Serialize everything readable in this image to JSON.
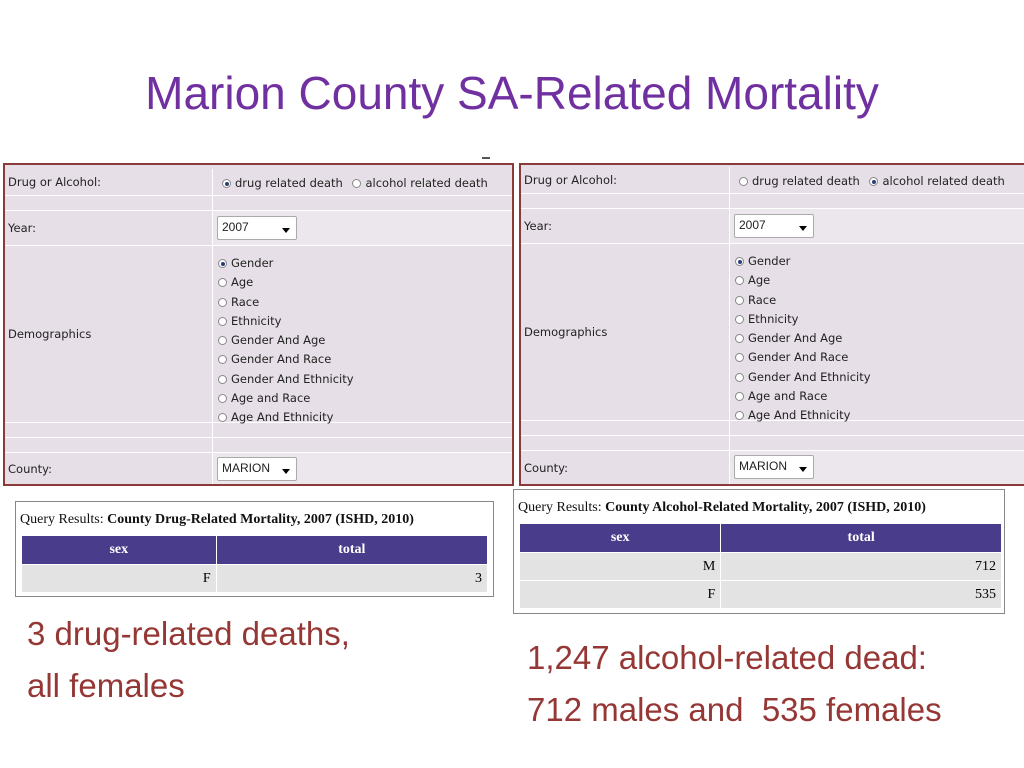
{
  "slide": {
    "title": "Marion County SA-Related Mortality"
  },
  "form_left": {
    "drug_alcohol_label": "Drug or Alcohol:",
    "drug_option": "drug related death",
    "alcohol_option": "alcohol related death",
    "selected_type": "drug",
    "year_label": "Year:",
    "year_value": "2007",
    "demographics_label": "Demographics",
    "demographics": [
      "Gender",
      "Age",
      "Race",
      "Ethnicity",
      "Gender And Age",
      "Gender And Race",
      "Gender And Ethnicity",
      "Age and Race",
      "Age And Ethnicity"
    ],
    "selected_demographic": "Gender",
    "county_label": "County:",
    "county_value": "MARION"
  },
  "form_right": {
    "drug_alcohol_label": "Drug or Alcohol:",
    "drug_option": "drug related death",
    "alcohol_option": "alcohol related death",
    "selected_type": "alcohol",
    "year_label": "Year:",
    "year_value": "2007",
    "demographics_label": "Demographics",
    "demographics": [
      "Gender",
      "Age",
      "Race",
      "Ethnicity",
      "Gender And Age",
      "Gender And Race",
      "Gender And Ethnicity",
      "Age and Race",
      "Age And Ethnicity"
    ],
    "selected_demographic": "Gender",
    "county_label": "County:",
    "county_value": "MARION"
  },
  "results_left": {
    "prefix": "Query Results:",
    "title": "County Drug-Related Mortality, 2007 (ISHD, 2010)",
    "columns": [
      "sex",
      "total"
    ],
    "rows": [
      {
        "sex": "F",
        "total": "3"
      }
    ]
  },
  "results_right": {
    "prefix": "Query Results:",
    "title": "County Alcohol-Related Mortality, 2007 (ISHD, 2010)",
    "columns": [
      "sex",
      "total"
    ],
    "rows": [
      {
        "sex": "M",
        "total": "712"
      },
      {
        "sex": "F",
        "total": "535"
      }
    ]
  },
  "notes": {
    "left_line1": "3 drug-related deaths,",
    "left_line2": "all females",
    "right_line1": "1,247 alcohol-related dead:",
    "right_line2": "712 males and  535 females"
  },
  "colors": {
    "title": "#7030a0",
    "note": "#953735",
    "table_header": "#493c8a",
    "form_bg": "#e6dfe7",
    "form_border": "#8b3a3a"
  }
}
